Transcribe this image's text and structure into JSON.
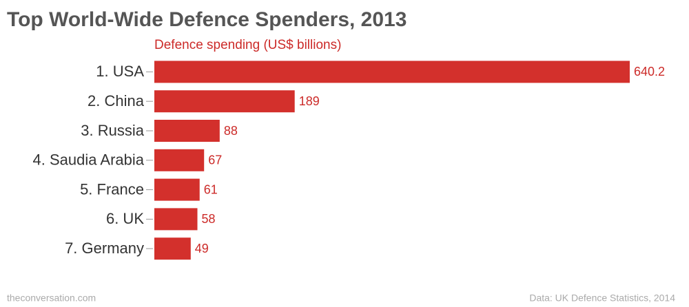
{
  "chart_data": {
    "type": "hbar",
    "title": "Top World-Wide Defence Spenders, 2013",
    "subtitle": "Defence spending (US$ billions)",
    "categories": [
      "1. USA",
      "2. China",
      "3. Russia",
      "4. Saudia Arabia",
      "5. France",
      "6. UK",
      "7. Germany"
    ],
    "values": [
      640.2,
      189,
      88,
      67,
      61,
      58,
      49
    ],
    "color": "#d3302c",
    "source_left": "theconversation.com",
    "source_right": "Data: UK Defence Statistics, 2014"
  }
}
